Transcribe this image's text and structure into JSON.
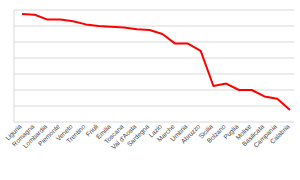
{
  "chart_data": {
    "type": "line",
    "categories": [
      "Liguria",
      "Romagna",
      "Lombardia",
      "Piemonte",
      "Veneto",
      "Trentino",
      "Friuli",
      "Emilia",
      "Toscana",
      "Val d'Aosta",
      "Sardegna",
      "Lazio",
      "Marche",
      "Umbria",
      "Abruzzo",
      "Sicilia",
      "Bolzano",
      "Puglia",
      "Molise",
      "Basilicata",
      "Campania",
      "Calabria"
    ],
    "values": [
      6.75,
      6.7,
      6.4,
      6.4,
      6.3,
      6.1,
      6.0,
      5.95,
      5.9,
      5.8,
      5.75,
      5.5,
      4.9,
      4.9,
      4.45,
      2.25,
      2.4,
      2.0,
      2.0,
      1.6,
      1.45,
      0.75
    ],
    "color": "#ff0000",
    "ylim": [
      0,
      7
    ],
    "yticks": [
      0,
      1,
      2,
      3,
      4,
      5,
      6,
      7
    ],
    "grid": true,
    "tick_labels": "x",
    "line_style": "solid"
  }
}
